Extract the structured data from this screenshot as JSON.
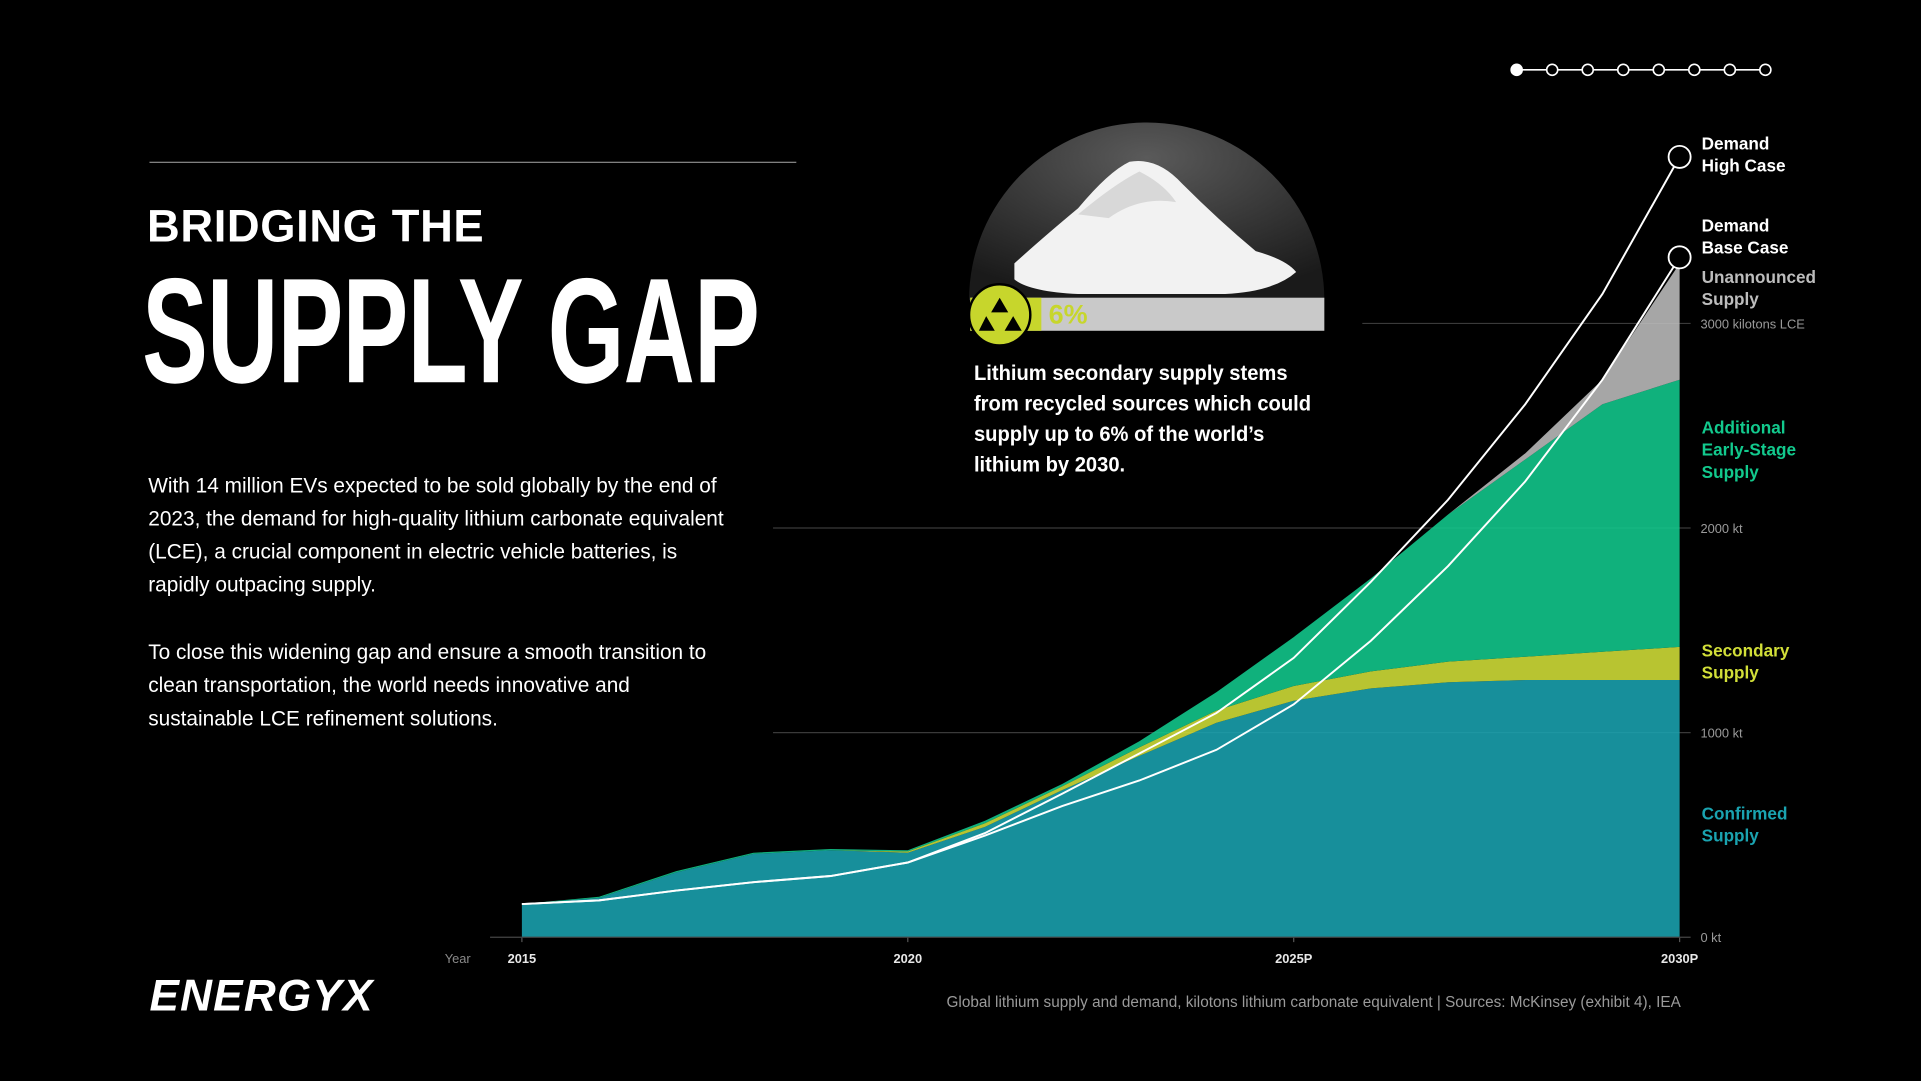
{
  "header": {
    "title_line1": "BRIDGING THE",
    "title_line2": "SUPPLY GAP"
  },
  "body": {
    "paragraphs": [
      "With 14 million EVs expected to be sold globally by the end of 2023, the demand for high-quality lithium carbonate equivalent (LCE), a crucial component in electric vehicle batteries, is rapidly outpacing supply.",
      "To close this widening gap and ensure a smooth transition to clean transportation, the world needs innovative and sustainable LCE refinement solutions."
    ]
  },
  "callout": {
    "percent": "6%",
    "text": "Lithium secondary supply stems from recycled sources which could supply up to 6% of the world’s lithium by 2030."
  },
  "logo": "ENERGYX",
  "chart_data": {
    "type": "area",
    "stacked": true,
    "caption": "Global lithium supply and demand, kilotons lithium carbonate equivalent  |  Sources: McKinsey (exhibit 4), IEA",
    "x_label": "Year",
    "x": [
      2015,
      2016,
      2017,
      2018,
      2019,
      2020,
      2021,
      2022,
      2023,
      2024,
      2025,
      2026,
      2027,
      2028,
      2029,
      2030
    ],
    "xlim": [
      2015,
      2030
    ],
    "xticks": [
      2015,
      2020,
      {
        "value": 2025,
        "label": "2025P"
      },
      {
        "value": 2030,
        "label": "2030P"
      }
    ],
    "ylim": [
      0,
      4000
    ],
    "yticks": [
      {
        "value": 0,
        "label": "0 kt"
      },
      {
        "value": 1000,
        "label": "1000 kt"
      },
      {
        "value": 2000,
        "label": "2000 kt"
      },
      {
        "value": 3000,
        "label": "3000 kilotons LCE"
      }
    ],
    "grid": true,
    "series": [
      {
        "name": "Confirmed Supply",
        "kind": "area",
        "color": "#1aa3b0",
        "values": [
          162,
          192,
          317,
          407,
          425,
          413,
          539,
          719,
          886,
          1048,
          1156,
          1216,
          1246,
          1257,
          1257,
          1257
        ]
      },
      {
        "name": "Secondary Supply",
        "kind": "area",
        "color": "#d2df38",
        "values": [
          0,
          0,
          0,
          0,
          0,
          6,
          18,
          18,
          42,
          60,
          72,
          83,
          101,
          114,
          138,
          162
        ]
      },
      {
        "name": "Additional Early-Stage Supply",
        "kind": "area",
        "color": "#12c98d",
        "values": [
          0,
          6,
          6,
          6,
          6,
          6,
          12,
          12,
          30,
          90,
          239,
          455,
          719,
          964,
          1210,
          1306
        ]
      },
      {
        "name": "Unannounced Supply",
        "kind": "area",
        "color": "#bdbdbd",
        "values": [
          0,
          0,
          0,
          0,
          0,
          0,
          0,
          0,
          0,
          0,
          0,
          0,
          0,
          30,
          120,
          568
        ]
      },
      {
        "name": "Demand High Case",
        "kind": "line",
        "color": "#ffffff",
        "values": [
          162,
          180,
          228,
          269,
          299,
          365,
          509,
          701,
          898,
          1096,
          1365,
          1737,
          2138,
          2605,
          3144,
          3814
        ]
      },
      {
        "name": "Demand Base Case",
        "kind": "line",
        "color": "#ffffff",
        "values": [
          162,
          180,
          228,
          269,
          299,
          365,
          497,
          641,
          766,
          916,
          1138,
          1449,
          1814,
          2228,
          2725,
          3323
        ]
      }
    ]
  }
}
